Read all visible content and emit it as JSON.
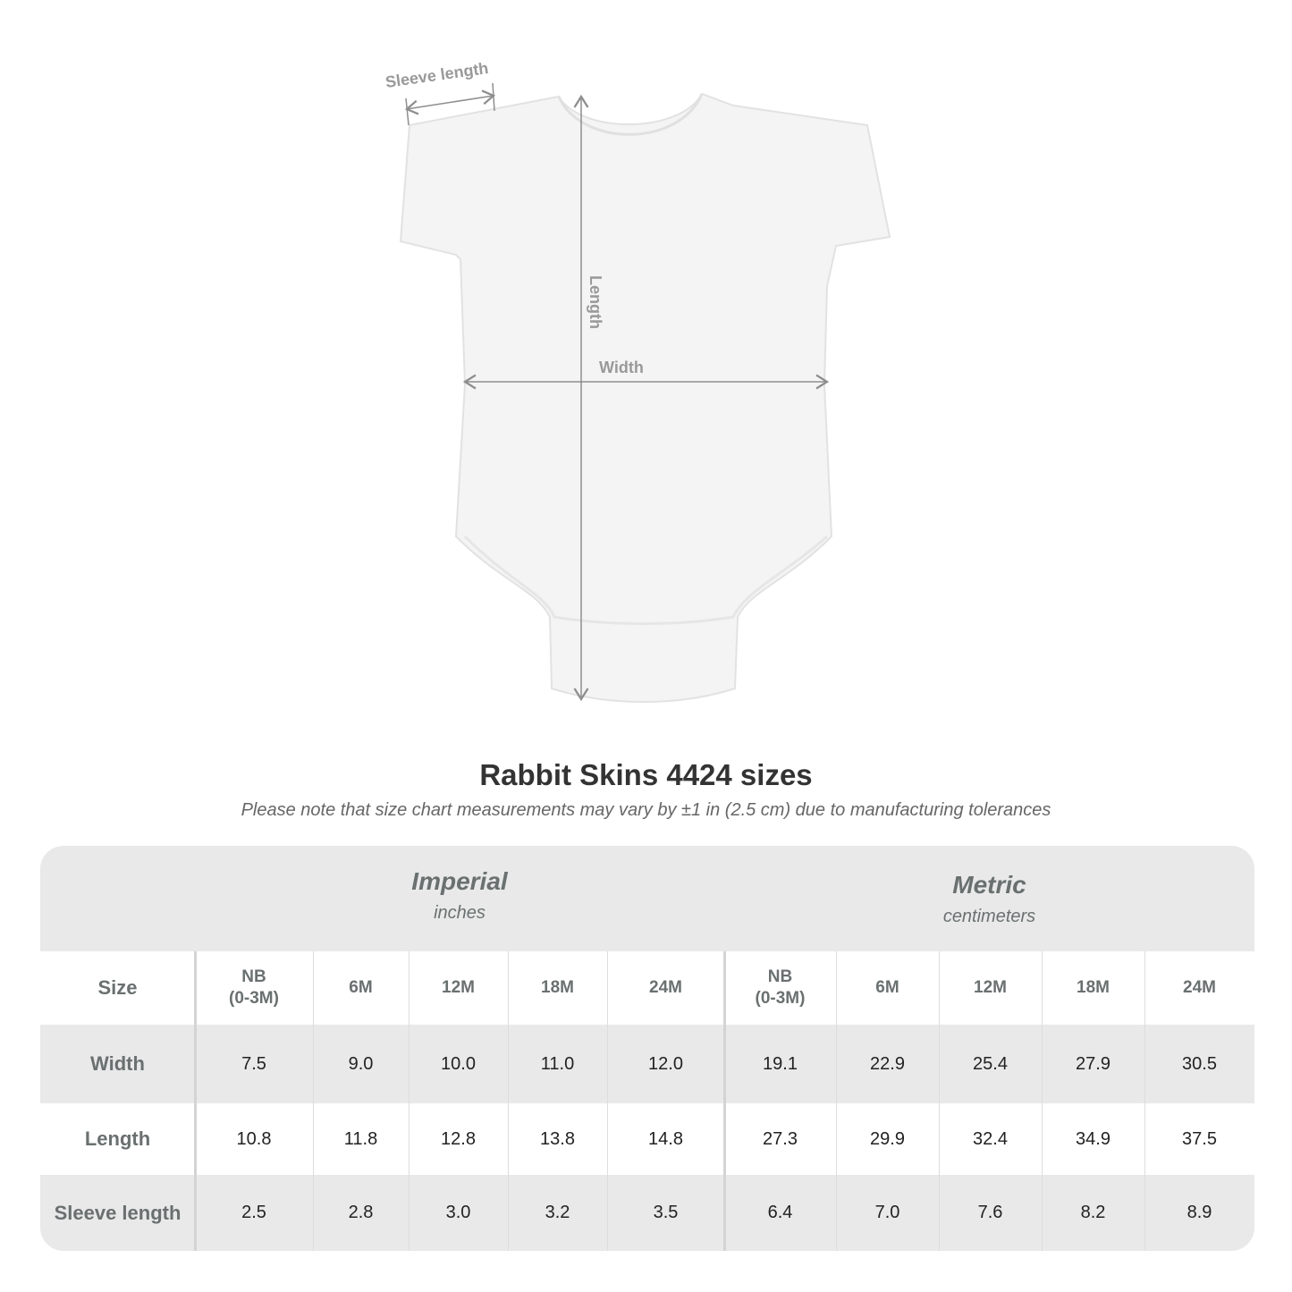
{
  "diagram": {
    "labels": {
      "sleeve": "Sleeve length",
      "length": "Length",
      "width": "Width"
    },
    "garment_color": "#f4f4f4",
    "line_color": "#8e8e8e"
  },
  "title": "Rabbit Skins 4424 sizes",
  "subtitle": "Please note that size chart measurements may vary by ±1 in (2.5 cm) due to manufacturing tolerances",
  "table": {
    "imperial": {
      "name": "Imperial",
      "unit": "inches"
    },
    "metric": {
      "name": "Metric",
      "unit": "centimeters"
    },
    "size_label": "Size",
    "sizes": [
      "NB\n(0-3M)",
      "6M",
      "12M",
      "18M",
      "24M"
    ],
    "rows": [
      {
        "label": "Width",
        "imperial": [
          "7.5",
          "9.0",
          "10.0",
          "11.0",
          "12.0"
        ],
        "metric": [
          "19.1",
          "22.9",
          "25.4",
          "27.9",
          "30.5"
        ]
      },
      {
        "label": "Length",
        "imperial": [
          "10.8",
          "11.8",
          "12.8",
          "13.8",
          "14.8"
        ],
        "metric": [
          "27.3",
          "29.9",
          "32.4",
          "34.9",
          "37.5"
        ]
      },
      {
        "label": "Sleeve length",
        "imperial": [
          "2.5",
          "2.8",
          "3.0",
          "3.2",
          "3.5"
        ],
        "metric": [
          "6.4",
          "7.0",
          "7.6",
          "8.2",
          "8.9"
        ]
      }
    ]
  }
}
